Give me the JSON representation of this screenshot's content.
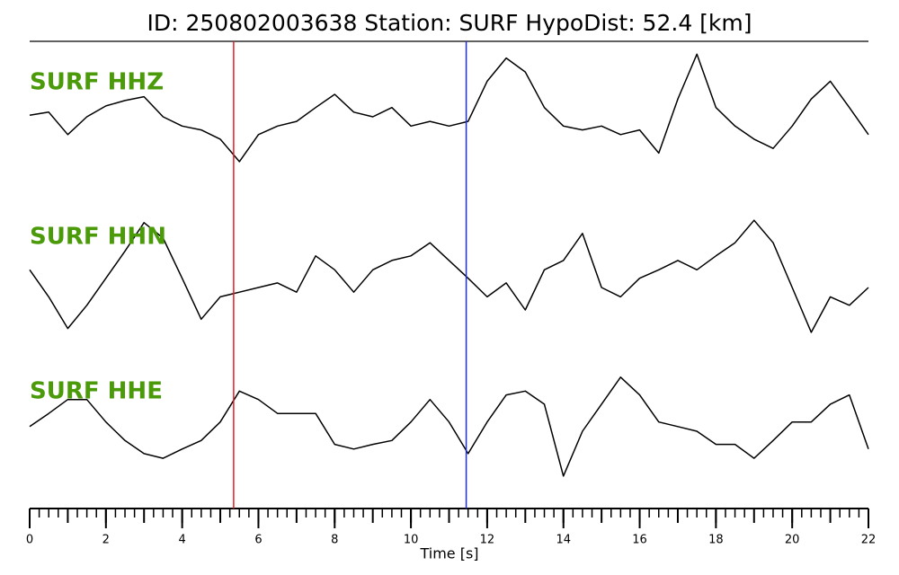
{
  "chart_data": {
    "type": "line",
    "title": "ID: 250802003638   Station: SURF   HypoDist:    52.4 [km]",
    "xlabel": "Time [s]",
    "xlim": [
      0,
      22
    ],
    "xticks": [
      0,
      2,
      4,
      6,
      8,
      10,
      12,
      14,
      16,
      18,
      20,
      22
    ],
    "xminor_step": 0.25,
    "ylim": [
      -1,
      1
    ],
    "label_color": "#4a9a0a",
    "markers": [
      {
        "x": 5.35,
        "color": "#e02020"
      },
      {
        "x": 11.45,
        "color": "#2030d0"
      }
    ],
    "x": [
      0,
      0.5,
      1,
      1.5,
      2,
      2.5,
      3,
      3.5,
      4,
      4.5,
      5,
      5.5,
      6,
      6.5,
      7,
      7.5,
      8,
      8.5,
      9,
      9.5,
      10,
      10.5,
      11,
      11.5,
      12,
      12.5,
      13,
      13.5,
      14,
      14.5,
      15,
      15.5,
      16,
      16.5,
      17,
      17.5,
      18,
      18.5,
      19,
      19.5,
      20,
      20.5,
      21,
      21.5,
      22
    ],
    "series": [
      {
        "name": "SURF HHZ",
        "color": "#000000",
        "values": [
          0.09,
          0.13,
          -0.16,
          0.07,
          0.21,
          0.28,
          0.33,
          0.07,
          -0.05,
          -0.1,
          -0.22,
          -0.51,
          -0.16,
          -0.05,
          0.01,
          0.19,
          0.36,
          0.13,
          0.07,
          0.19,
          -0.05,
          0.01,
          -0.05,
          0.01,
          0.53,
          0.83,
          0.65,
          0.19,
          -0.05,
          -0.1,
          -0.05,
          -0.16,
          -0.1,
          -0.4,
          0.3,
          0.88,
          0.19,
          -0.05,
          -0.22,
          -0.34,
          -0.05,
          0.3,
          0.53,
          0.19,
          -0.16
        ]
      },
      {
        "name": "SURF HHN",
        "color": "#000000",
        "values": [
          0.09,
          -0.26,
          -0.67,
          -0.37,
          -0.02,
          0.33,
          0.7,
          0.5,
          -0.02,
          -0.55,
          -0.26,
          -0.2,
          -0.14,
          -0.08,
          -0.2,
          0.27,
          0.09,
          -0.2,
          0.09,
          0.21,
          0.27,
          0.44,
          0.21,
          -0.02,
          -0.26,
          -0.08,
          -0.43,
          0.09,
          0.21,
          0.56,
          -0.14,
          -0.26,
          -0.02,
          0.09,
          0.21,
          0.09,
          0.27,
          0.44,
          0.73,
          0.44,
          -0.14,
          -0.72,
          -0.26,
          -0.37,
          -0.14
        ]
      },
      {
        "name": "SURF HHE",
        "color": "#000000",
        "values": [
          0.06,
          0.23,
          0.41,
          0.41,
          0.12,
          -0.12,
          -0.29,
          -0.35,
          -0.23,
          -0.12,
          0.12,
          0.52,
          0.41,
          0.23,
          0.23,
          0.23,
          -0.17,
          -0.23,
          -0.17,
          -0.12,
          0.12,
          0.41,
          0.12,
          -0.29,
          0.12,
          0.47,
          0.52,
          0.35,
          -0.58,
          0.0,
          0.35,
          0.7,
          0.47,
          0.12,
          0.06,
          0.0,
          -0.17,
          -0.17,
          -0.35,
          -0.12,
          0.12,
          0.12,
          0.35,
          0.47,
          -0.23
        ]
      }
    ]
  }
}
